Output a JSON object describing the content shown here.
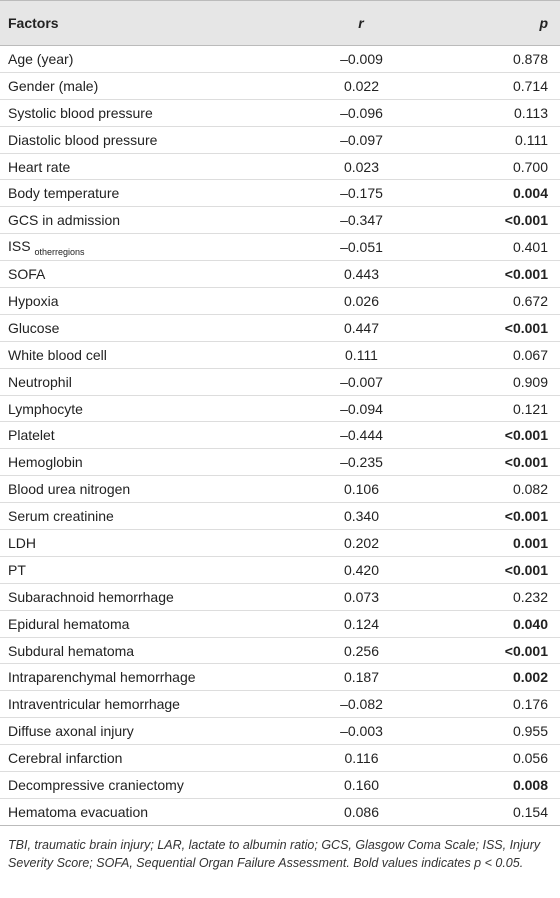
{
  "table": {
    "header": [
      "Factors",
      "r",
      "p"
    ],
    "rows": [
      {
        "factor": "Age (year)",
        "r": "–0.009",
        "p": "0.878",
        "bold": false
      },
      {
        "factor": "Gender (male)",
        "r": "0.022",
        "p": "0.714",
        "bold": false
      },
      {
        "factor": "Systolic blood pressure",
        "r": "–0.096",
        "p": "0.113",
        "bold": false
      },
      {
        "factor": "Diastolic blood pressure",
        "r": "–0.097",
        "p": "0.111",
        "bold": false
      },
      {
        "factor": "Heart rate",
        "r": "0.023",
        "p": "0.700",
        "bold": false
      },
      {
        "factor": "Body temperature",
        "r": "–0.175",
        "p": "0.004",
        "bold": true
      },
      {
        "factor": "GCS in admission",
        "r": "–0.347",
        "p": "<0.001",
        "bold": true
      },
      {
        "factor": "ISS",
        "sub": "otherregions",
        "r": "–0.051",
        "p": "0.401",
        "bold": false
      },
      {
        "factor": "SOFA",
        "r": "0.443",
        "p": "<0.001",
        "bold": true
      },
      {
        "factor": "Hypoxia",
        "r": "0.026",
        "p": "0.672",
        "bold": false
      },
      {
        "factor": "Glucose",
        "r": "0.447",
        "p": "<0.001",
        "bold": true
      },
      {
        "factor": "White blood cell",
        "r": "0.111",
        "p": "0.067",
        "bold": false
      },
      {
        "factor": "Neutrophil",
        "r": "–0.007",
        "p": "0.909",
        "bold": false
      },
      {
        "factor": "Lymphocyte",
        "r": "–0.094",
        "p": "0.121",
        "bold": false
      },
      {
        "factor": "Platelet",
        "r": "–0.444",
        "p": "<0.001",
        "bold": true
      },
      {
        "factor": "Hemoglobin",
        "r": "–0.235",
        "p": "<0.001",
        "bold": true
      },
      {
        "factor": "Blood urea nitrogen",
        "r": "0.106",
        "p": "0.082",
        "bold": false
      },
      {
        "factor": "Serum creatinine",
        "r": "0.340",
        "p": "<0.001",
        "bold": true
      },
      {
        "factor": "LDH",
        "r": "0.202",
        "p": "0.001",
        "bold": true
      },
      {
        "factor": "PT",
        "r": "0.420",
        "p": "<0.001",
        "bold": true
      },
      {
        "factor": "Subarachnoid hemorrhage",
        "r": "0.073",
        "p": "0.232",
        "bold": false
      },
      {
        "factor": "Epidural hematoma",
        "r": "0.124",
        "p": "0.040",
        "bold": true
      },
      {
        "factor": "Subdural hematoma",
        "r": "0.256",
        "p": "<0.001",
        "bold": true
      },
      {
        "factor": "Intraparenchymal hemorrhage",
        "r": "0.187",
        "p": "0.002",
        "bold": true
      },
      {
        "factor": "Intraventricular hemorrhage",
        "r": "–0.082",
        "p": "0.176",
        "bold": false
      },
      {
        "factor": "Diffuse axonal injury",
        "r": "–0.003",
        "p": "0.955",
        "bold": false
      },
      {
        "factor": "Cerebral infarction",
        "r": "0.116",
        "p": "0.056",
        "bold": false
      },
      {
        "factor": "Decompressive craniectomy",
        "r": "0.160",
        "p": "0.008",
        "bold": true
      },
      {
        "factor": "Hematoma evacuation",
        "r": "0.086",
        "p": "0.154",
        "bold": false
      }
    ],
    "footnote": "TBI, traumatic brain injury; LAR, lactate to albumin ratio; GCS, Glasgow Coma Scale; ISS, Injury Severity Score; SOFA, Sequential Organ Failure Assessment. Bold values indicates p < 0.05."
  }
}
